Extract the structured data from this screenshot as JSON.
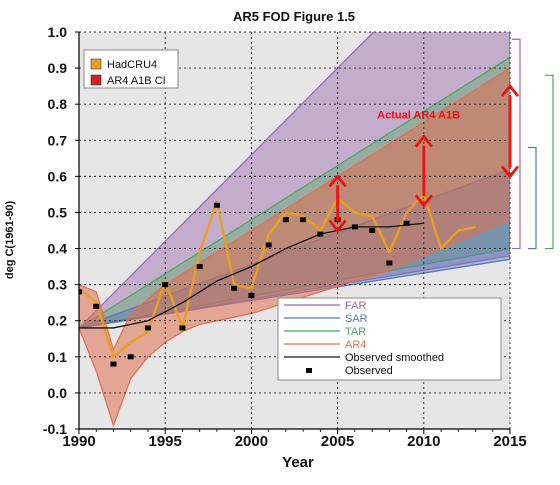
{
  "chart_data": {
    "type": "line",
    "title": "AR5 FOD Figure 1.5",
    "xlabel": "Year",
    "ylabel": "deg C(1961-90)",
    "xlim": [
      1990,
      2015
    ],
    "ylim": [
      -0.1,
      1.0
    ],
    "x_ticks": [
      1990,
      1995,
      2000,
      2005,
      2010,
      2015
    ],
    "y_ticks": [
      -0.1,
      0.0,
      0.1,
      0.2,
      0.3,
      0.4,
      0.5,
      0.6,
      0.7,
      0.8,
      0.9,
      1.0
    ],
    "y_tick_labels": [
      "-0.1",
      "0.0",
      "0.1",
      "0.2",
      "0.3",
      "0.4",
      "0.5",
      "0.6",
      "0.7",
      "0.8",
      "0.9",
      "1.0"
    ],
    "grid": "dotted",
    "colors": {
      "far": "#9b66b0",
      "sar": "#5577bb",
      "tar": "#44aa55",
      "ar4": "#e07050",
      "hadcru": "#e8a020",
      "ar4ci": "#cc2222",
      "annotation": "#ee1111"
    },
    "bands": [
      {
        "name": "FAR",
        "color": "#9b66b0",
        "x": [
          1990,
          2015
        ],
        "lower": [
          0.18,
          0.38
        ],
        "upper": [
          0.18,
          1.38
        ]
      },
      {
        "name": "SAR",
        "color": "#5577bb",
        "x": [
          1990,
          2015
        ],
        "lower": [
          0.18,
          0.37
        ],
        "upper": [
          0.18,
          0.62
        ]
      },
      {
        "name": "TAR",
        "color": "#44aa55",
        "x": [
          1990,
          2015
        ],
        "lower": [
          0.18,
          0.4
        ],
        "upper": [
          0.18,
          0.93
        ]
      },
      {
        "name": "AR4",
        "color": "#e07050",
        "x": [
          1990,
          1991,
          1992,
          1993,
          1994,
          1995,
          1996,
          1997,
          1998,
          2000,
          2002,
          2004,
          2006,
          2008,
          2010,
          2012,
          2014,
          2015
        ],
        "lower": [
          0.18,
          0.06,
          -0.09,
          0.04,
          0.1,
          0.14,
          0.17,
          0.19,
          0.2,
          0.22,
          0.25,
          0.28,
          0.31,
          0.34,
          0.38,
          0.42,
          0.46,
          0.48
        ],
        "upper": [
          0.3,
          0.28,
          0.12,
          0.22,
          0.26,
          0.3,
          0.33,
          0.36,
          0.39,
          0.45,
          0.51,
          0.57,
          0.63,
          0.69,
          0.75,
          0.81,
          0.87,
          0.9
        ]
      }
    ],
    "series": [
      {
        "name": "HadCRU4",
        "style": "line",
        "color": "#e8a020",
        "x": [
          1990,
          1991,
          1992,
          1993,
          1994,
          1995,
          1996,
          1997,
          1998,
          1999,
          2000,
          2001,
          2002,
          2003,
          2004,
          2005,
          2006,
          2007,
          2008,
          2009,
          2010,
          2011,
          2012,
          2013
        ],
        "y": [
          0.29,
          0.25,
          0.1,
          0.14,
          0.17,
          0.31,
          0.18,
          0.39,
          0.53,
          0.3,
          0.29,
          0.44,
          0.5,
          0.49,
          0.45,
          0.54,
          0.5,
          0.49,
          0.39,
          0.5,
          0.55,
          0.4,
          0.45,
          0.46
        ]
      },
      {
        "name": "Observed smoothed",
        "style": "line",
        "color": "#111111",
        "x": [
          1990,
          1992,
          1994,
          1996,
          1998,
          2000,
          2002,
          2004,
          2006,
          2008,
          2010
        ],
        "y": [
          0.18,
          0.18,
          0.2,
          0.25,
          0.31,
          0.35,
          0.4,
          0.44,
          0.46,
          0.46,
          0.47
        ]
      },
      {
        "name": "Observed",
        "style": "markers",
        "color": "#000000",
        "x": [
          1990,
          1991,
          1992,
          1993,
          1994,
          1995,
          1996,
          1997,
          1998,
          1999,
          2000,
          2001,
          2002,
          2003,
          2004,
          2005,
          2006,
          2007,
          2008,
          2009
        ],
        "y": [
          0.28,
          0.24,
          0.08,
          0.1,
          0.18,
          0.3,
          0.18,
          0.35,
          0.52,
          0.29,
          0.27,
          0.41,
          0.48,
          0.48,
          0.44,
          0.48,
          0.46,
          0.45,
          0.36,
          0.47
        ]
      }
    ],
    "annotation_arrows": [
      {
        "x": 2005,
        "y1": 0.45,
        "y2": 0.6
      },
      {
        "x": 2010,
        "y1": 0.52,
        "y2": 0.71
      },
      {
        "x": 2015,
        "y1": 0.6,
        "y2": 0.85
      }
    ],
    "annotations": [
      {
        "text": "Actual AR4 A1B",
        "x": 2009.7,
        "y": 0.76
      }
    ],
    "right_brackets": [
      {
        "name": "FAR",
        "color": "#9b66b0",
        "y1": 0.4,
        "y2": 0.98
      },
      {
        "name": "TAR",
        "color": "#44aa55",
        "y1": 0.4,
        "y2": 0.88
      },
      {
        "name": "SAR",
        "color": "#5577bb",
        "y1": 0.4,
        "y2": 0.68
      }
    ],
    "legend_top_left": [
      {
        "label": "HadCRU4",
        "color": "#e8a020"
      },
      {
        "label": "AR4 A1B CI",
        "color": "#cc2222"
      }
    ],
    "legend_bottom_right": [
      {
        "label": "FAR",
        "color": "#9b66b0",
        "kind": "line"
      },
      {
        "label": "SAR",
        "color": "#5577bb",
        "kind": "line"
      },
      {
        "label": "TAR",
        "color": "#44aa55",
        "kind": "line"
      },
      {
        "label": "AR4",
        "color": "#e07050",
        "kind": "line"
      },
      {
        "label": "Observed smoothed",
        "color": "#111111",
        "kind": "line"
      },
      {
        "label": "Observed",
        "color": "#000000",
        "kind": "marker"
      }
    ]
  }
}
